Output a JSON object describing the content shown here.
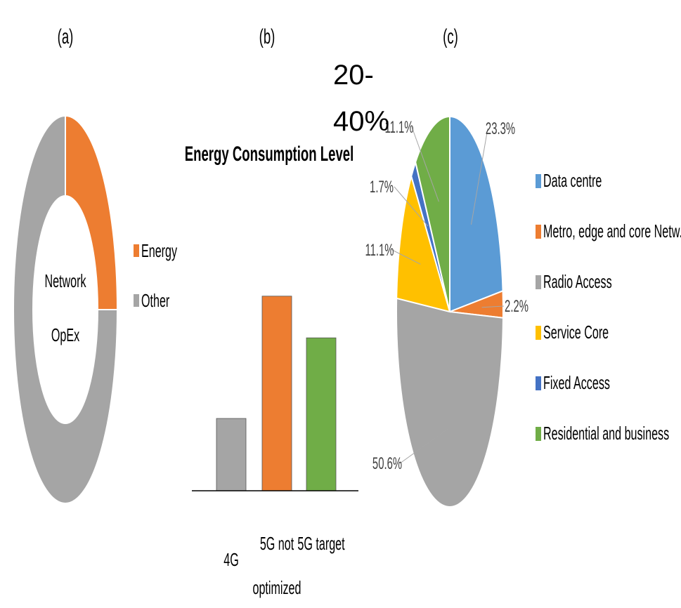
{
  "panels": {
    "a": {
      "tag": "(a)",
      "center_line1": "Network",
      "center_line2": "OpEx",
      "chart_data": {
        "type": "pie",
        "variant": "donut",
        "series": [
          {
            "name": "Energy",
            "value": 25,
            "color": "#ED7D31"
          },
          {
            "name": "Other",
            "value": 75,
            "color": "#A5A5A5"
          }
        ],
        "legend_position": "right"
      }
    },
    "b": {
      "tag": "(b)",
      "annotation_line1": "20-",
      "annotation_line2": "40%",
      "chart_data": {
        "type": "bar",
        "title": "Energy Consumption Level",
        "categories": [
          "4G",
          "5G not optimized",
          "5G target"
        ],
        "category_lines": [
          [
            "4G"
          ],
          [
            "5G not",
            "optimized"
          ],
          [
            "5G target"
          ]
        ],
        "values": [
          26,
          70,
          55
        ],
        "colors": [
          "#A5A5A5",
          "#ED7D31",
          "#70AD47"
        ],
        "ylim": [
          0,
          100
        ],
        "grid": false
      }
    },
    "c": {
      "tag": "(c)",
      "chart_data": {
        "type": "pie",
        "series": [
          {
            "name": "Data centre",
            "value": 23.3,
            "label": "23.3%",
            "color": "#5B9BD5"
          },
          {
            "name": "Metro, edge and core Netw.",
            "value": 2.2,
            "label": "2.2%",
            "color": "#ED7D31"
          },
          {
            "name": "Radio Access",
            "value": 50.6,
            "label": "50.6%",
            "color": "#A5A5A5"
          },
          {
            "name": "Service Core",
            "value": 11.1,
            "label": "11.1%",
            "color": "#FFC000"
          },
          {
            "name": "Fixed Access",
            "value": 1.7,
            "label": "1.7%",
            "color": "#4472C4"
          },
          {
            "name": "Residential and business",
            "value": 11.1,
            "label": "11.1%",
            "color": "#70AD47"
          }
        ],
        "legend_position": "right"
      }
    }
  }
}
